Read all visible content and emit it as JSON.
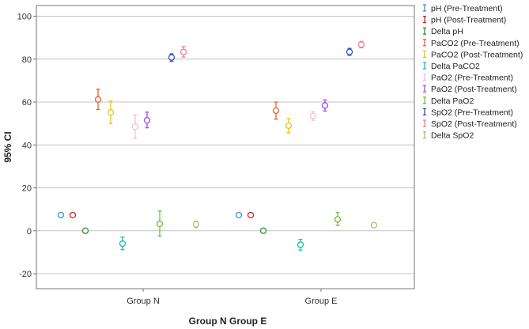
{
  "chart_data": {
    "type": "errorbar",
    "title": "",
    "xlabel": "Group N Group E",
    "ylabel": "95% CI",
    "ylim": [
      -27,
      105
    ],
    "yticks": [
      -20,
      0,
      20,
      40,
      60,
      80,
      100
    ],
    "grid": "horizontal",
    "legend_position": "right",
    "categories": [
      "Group N",
      "Group E"
    ],
    "series": [
      {
        "name": "pH (Pre-Treatment)",
        "color": "#3f8ed8",
        "values": [
          {
            "mean": 7.3,
            "lo": 7.0,
            "hi": 7.6
          },
          {
            "mean": 7.3,
            "lo": 7.0,
            "hi": 7.6
          }
        ]
      },
      {
        "name": "pH (Post-Treatment)",
        "color": "#d6202a",
        "values": [
          {
            "mean": 7.3,
            "lo": 7.0,
            "hi": 7.6
          },
          {
            "mean": 7.3,
            "lo": 7.0,
            "hi": 7.6
          }
        ]
      },
      {
        "name": "Delta pH",
        "color": "#2e8b2e",
        "values": [
          {
            "mean": 0.0,
            "lo": -0.2,
            "hi": 0.2
          },
          {
            "mean": 0.0,
            "lo": -0.2,
            "hi": 0.2
          }
        ]
      },
      {
        "name": "PaCO2 (Pre-Treatment)",
        "color": "#e8622a",
        "values": [
          {
            "mean": 61.2,
            "lo": 56.5,
            "hi": 66.0
          },
          {
            "mean": 56.0,
            "lo": 52.0,
            "hi": 60.0
          }
        ]
      },
      {
        "name": "PaCO2 (Post-Treatment)",
        "color": "#e8c21a",
        "values": [
          {
            "mean": 55.2,
            "lo": 50.0,
            "hi": 60.5
          },
          {
            "mean": 49.0,
            "lo": 45.7,
            "hi": 52.3
          }
        ]
      },
      {
        "name": "Delta PaCO2",
        "color": "#20b8b0",
        "values": [
          {
            "mean": -6.0,
            "lo": -8.8,
            "hi": -3.0
          },
          {
            "mean": -6.5,
            "lo": -9.0,
            "hi": -4.0
          }
        ]
      },
      {
        "name": "PaO2 (Pre-Treatment)",
        "color": "#f4c0d8",
        "values": [
          {
            "mean": 48.5,
            "lo": 43.0,
            "hi": 54.0
          },
          {
            "mean": 53.5,
            "lo": 51.5,
            "hi": 55.5
          }
        ]
      },
      {
        "name": "PaO2 (Post-Treatment)",
        "color": "#a64be8",
        "values": [
          {
            "mean": 51.5,
            "lo": 48.0,
            "hi": 55.3
          },
          {
            "mean": 58.4,
            "lo": 55.8,
            "hi": 61.0
          }
        ]
      },
      {
        "name": "Delta PaO2",
        "color": "#6abf40",
        "values": [
          {
            "mean": 3.2,
            "lo": -2.5,
            "hi": 9.2
          },
          {
            "mean": 5.3,
            "lo": 2.5,
            "hi": 8.5
          }
        ]
      },
      {
        "name": "SpO2 (Pre-Treatment)",
        "color": "#2e56b8",
        "values": [
          {
            "mean": 80.8,
            "lo": 79.0,
            "hi": 82.5
          },
          {
            "mean": 83.4,
            "lo": 81.8,
            "hi": 85.0
          }
        ]
      },
      {
        "name": "SpO2 (Post-Treatment)",
        "color": "#f07aa0",
        "values": [
          {
            "mean": 83.3,
            "lo": 81.0,
            "hi": 85.8
          },
          {
            "mean": 86.8,
            "lo": 85.3,
            "hi": 88.3
          }
        ]
      },
      {
        "name": "Delta SpO2",
        "color": "#c8b070",
        "values": [
          {
            "mean": 3.0,
            "lo": 1.5,
            "hi": 4.4
          },
          {
            "mean": 2.6,
            "lo": 2.0,
            "hi": 3.2
          }
        ]
      }
    ]
  }
}
